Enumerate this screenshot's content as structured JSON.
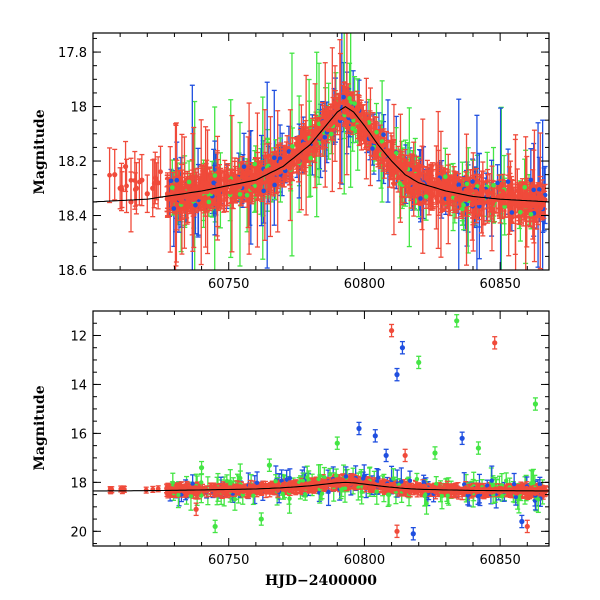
{
  "chart_data": [
    {
      "id": "top",
      "type": "scatter",
      "title": "",
      "xlabel": "",
      "ylabel": "Magnitude",
      "xlim": [
        60700,
        60868
      ],
      "ylim": [
        18.6,
        17.73
      ],
      "y_inverted": true,
      "x_ticks": [
        60750,
        60800,
        60850
      ],
      "x_tick_labels": [
        "60750",
        "60800",
        "60850"
      ],
      "y_ticks": [
        18.6,
        18.4,
        18.2,
        18.0,
        17.8
      ],
      "y_tick_labels": [
        "18.6",
        "18.4",
        "18.2",
        "18",
        "17.8"
      ],
      "colors": {
        "red": "#f04a3a",
        "green": "#44e544",
        "blue": "#1f4fe0",
        "model": "#000000"
      },
      "model_curve": {
        "x": [
          60700,
          60720,
          60740,
          60760,
          60770,
          60780,
          60785,
          60790,
          60793,
          60796,
          60800,
          60805,
          60810,
          60815,
          60820,
          60830,
          60840,
          60850,
          60868
        ],
        "y": [
          18.35,
          18.34,
          18.31,
          18.27,
          18.22,
          18.14,
          18.08,
          18.02,
          18.0,
          18.02,
          18.07,
          18.14,
          18.2,
          18.25,
          18.28,
          18.31,
          18.33,
          18.34,
          18.35
        ]
      },
      "series": [
        {
          "name": "red",
          "points": [
            [
              60708,
              18.25
            ],
            [
              60710,
              18.3
            ],
            [
              60712,
              18.22
            ],
            [
              60714,
              18.35
            ],
            [
              60716,
              18.3
            ],
            [
              60718,
              18.27
            ],
            [
              60720,
              18.32
            ],
            [
              60722,
              18.3
            ],
            [
              60724,
              18.28
            ]
          ]
        },
        {
          "name": "blue",
          "points": [
            [
              60765,
              18.22
            ],
            [
              60772,
              18.18
            ],
            [
              60778,
              18.12
            ],
            [
              60784,
              18.05
            ],
            [
              60790,
              17.98
            ],
            [
              60797,
              18.05
            ],
            [
              60805,
              18.12
            ],
            [
              60812,
              18.3
            ],
            [
              60820,
              18.25
            ],
            [
              60832,
              18.35
            ],
            [
              60845,
              18.36
            ]
          ]
        },
        {
          "name": "green",
          "points": [
            [
              60768,
              18.25
            ],
            [
              60775,
              18.15
            ],
            [
              60783,
              18.1
            ],
            [
              60788,
              18.0
            ],
            [
              60795,
              18.02
            ],
            [
              60802,
              18.1
            ],
            [
              60808,
              18.22
            ],
            [
              60815,
              18.28
            ],
            [
              60825,
              18.32
            ],
            [
              60838,
              18.3
            ],
            [
              60855,
              18.35
            ]
          ]
        }
      ]
    },
    {
      "id": "bottom",
      "type": "scatter",
      "title": "",
      "xlabel": "HJD−2400000",
      "ylabel": "Magnitude",
      "xlim": [
        60700,
        60868
      ],
      "ylim": [
        20.6,
        11.0
      ],
      "y_inverted": true,
      "x_ticks": [
        60750,
        60800,
        60850
      ],
      "x_tick_labels": [
        "60750",
        "60800",
        "60850"
      ],
      "y_ticks": [
        20,
        18,
        16,
        14,
        12
      ],
      "y_tick_labels": [
        "20",
        "18",
        "16",
        "14",
        "12"
      ],
      "colors": {
        "red": "#f04a3a",
        "green": "#44e544",
        "blue": "#1f4fe0",
        "model": "#000000"
      },
      "outliers": [
        {
          "color": "red",
          "x": 60810,
          "y": 11.8
        },
        {
          "color": "blue",
          "x": 60812,
          "y": 13.6
        },
        {
          "color": "blue",
          "x": 60814,
          "y": 12.5
        },
        {
          "color": "green",
          "x": 60820,
          "y": 13.1
        },
        {
          "color": "green",
          "x": 60834,
          "y": 11.4
        },
        {
          "color": "red",
          "x": 60848,
          "y": 12.3
        },
        {
          "color": "green",
          "x": 60863,
          "y": 14.8
        },
        {
          "color": "blue",
          "x": 60798,
          "y": 15.8
        },
        {
          "color": "green",
          "x": 60790,
          "y": 16.4
        },
        {
          "color": "blue",
          "x": 60836,
          "y": 16.2
        },
        {
          "color": "green",
          "x": 60826,
          "y": 16.8
        },
        {
          "color": "red",
          "x": 60812,
          "y": 20.0
        },
        {
          "color": "blue",
          "x": 60818,
          "y": 20.1
        },
        {
          "color": "green",
          "x": 60740,
          "y": 17.4
        },
        {
          "color": "green",
          "x": 60765,
          "y": 17.3
        },
        {
          "color": "blue",
          "x": 60808,
          "y": 16.9
        },
        {
          "color": "red",
          "x": 60815,
          "y": 16.9
        },
        {
          "color": "blue",
          "x": 60804,
          "y": 16.1
        },
        {
          "color": "green",
          "x": 60842,
          "y": 16.6
        },
        {
          "color": "red",
          "x": 60860,
          "y": 19.8
        },
        {
          "color": "blue",
          "x": 60858,
          "y": 19.6
        },
        {
          "color": "green",
          "x": 60745,
          "y": 19.8
        },
        {
          "color": "green",
          "x": 60762,
          "y": 19.5
        },
        {
          "color": "red",
          "x": 60738,
          "y": 19.1
        }
      ]
    }
  ]
}
